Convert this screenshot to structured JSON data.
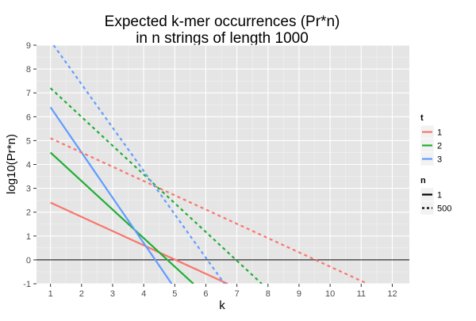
{
  "chart_data": {
    "type": "line",
    "title": "Expected k-mer occurrences (Pr*n)",
    "subtitle": "in n strings of length 1000",
    "xlabel": "k",
    "ylabel": "log10(Pr*n)",
    "xlim": [
      0.55,
      12.55
    ],
    "ylim": [
      -1,
      9
    ],
    "x_ticks": [
      1,
      2,
      3,
      4,
      5,
      6,
      7,
      8,
      9,
      10,
      11,
      12
    ],
    "y_ticks": [
      -1,
      0,
      1,
      2,
      3,
      4,
      5,
      6,
      7,
      8,
      9
    ],
    "grid": true,
    "hline": 0,
    "colors": {
      "panel": "#e5e5e5",
      "grid_major": "#ffffff",
      "grid_minor": "#f2f2f2",
      "t1": "#f8766d",
      "t2": "#1fae34",
      "t3": "#619cff",
      "hline": "#000000",
      "legend_key_bg": "#f2f2f2",
      "legend_line": "#000000",
      "tick_label": "#4d4d4d"
    },
    "legends": [
      {
        "title": "t",
        "entries": [
          {
            "label": "1",
            "color_key": "t1",
            "style": "solid"
          },
          {
            "label": "2",
            "color_key": "t2",
            "style": "solid"
          },
          {
            "label": "3",
            "color_key": "t3",
            "style": "solid"
          }
        ]
      },
      {
        "title": "n",
        "entries": [
          {
            "label": "1",
            "color_key": "legend_line",
            "style": "solid"
          },
          {
            "label": "500",
            "color_key": "legend_line",
            "style": "dashed"
          }
        ]
      }
    ],
    "series": [
      {
        "t": "1",
        "n": "1",
        "color_key": "t1",
        "style": "solid",
        "x": [
          1,
          6.7
        ],
        "y": [
          2.4,
          -1
        ]
      },
      {
        "t": "2",
        "n": "1",
        "color_key": "t2",
        "style": "solid",
        "x": [
          1,
          5.6
        ],
        "y": [
          4.5,
          -1
        ]
      },
      {
        "t": "3",
        "n": "1",
        "color_key": "t3",
        "style": "solid",
        "x": [
          1,
          4.9
        ],
        "y": [
          6.4,
          -1
        ]
      },
      {
        "t": "1",
        "n": "500",
        "color_key": "t1",
        "style": "dashed",
        "x": [
          1,
          11.2
        ],
        "y": [
          5.1,
          -1
        ]
      },
      {
        "t": "2",
        "n": "500",
        "color_key": "t2",
        "style": "dashed",
        "x": [
          1,
          7.8
        ],
        "y": [
          7.2,
          -1
        ]
      },
      {
        "t": "3",
        "n": "500",
        "color_key": "t3",
        "style": "dashed",
        "x": [
          1.1,
          6.6
        ],
        "y": [
          9,
          -1
        ]
      }
    ]
  }
}
